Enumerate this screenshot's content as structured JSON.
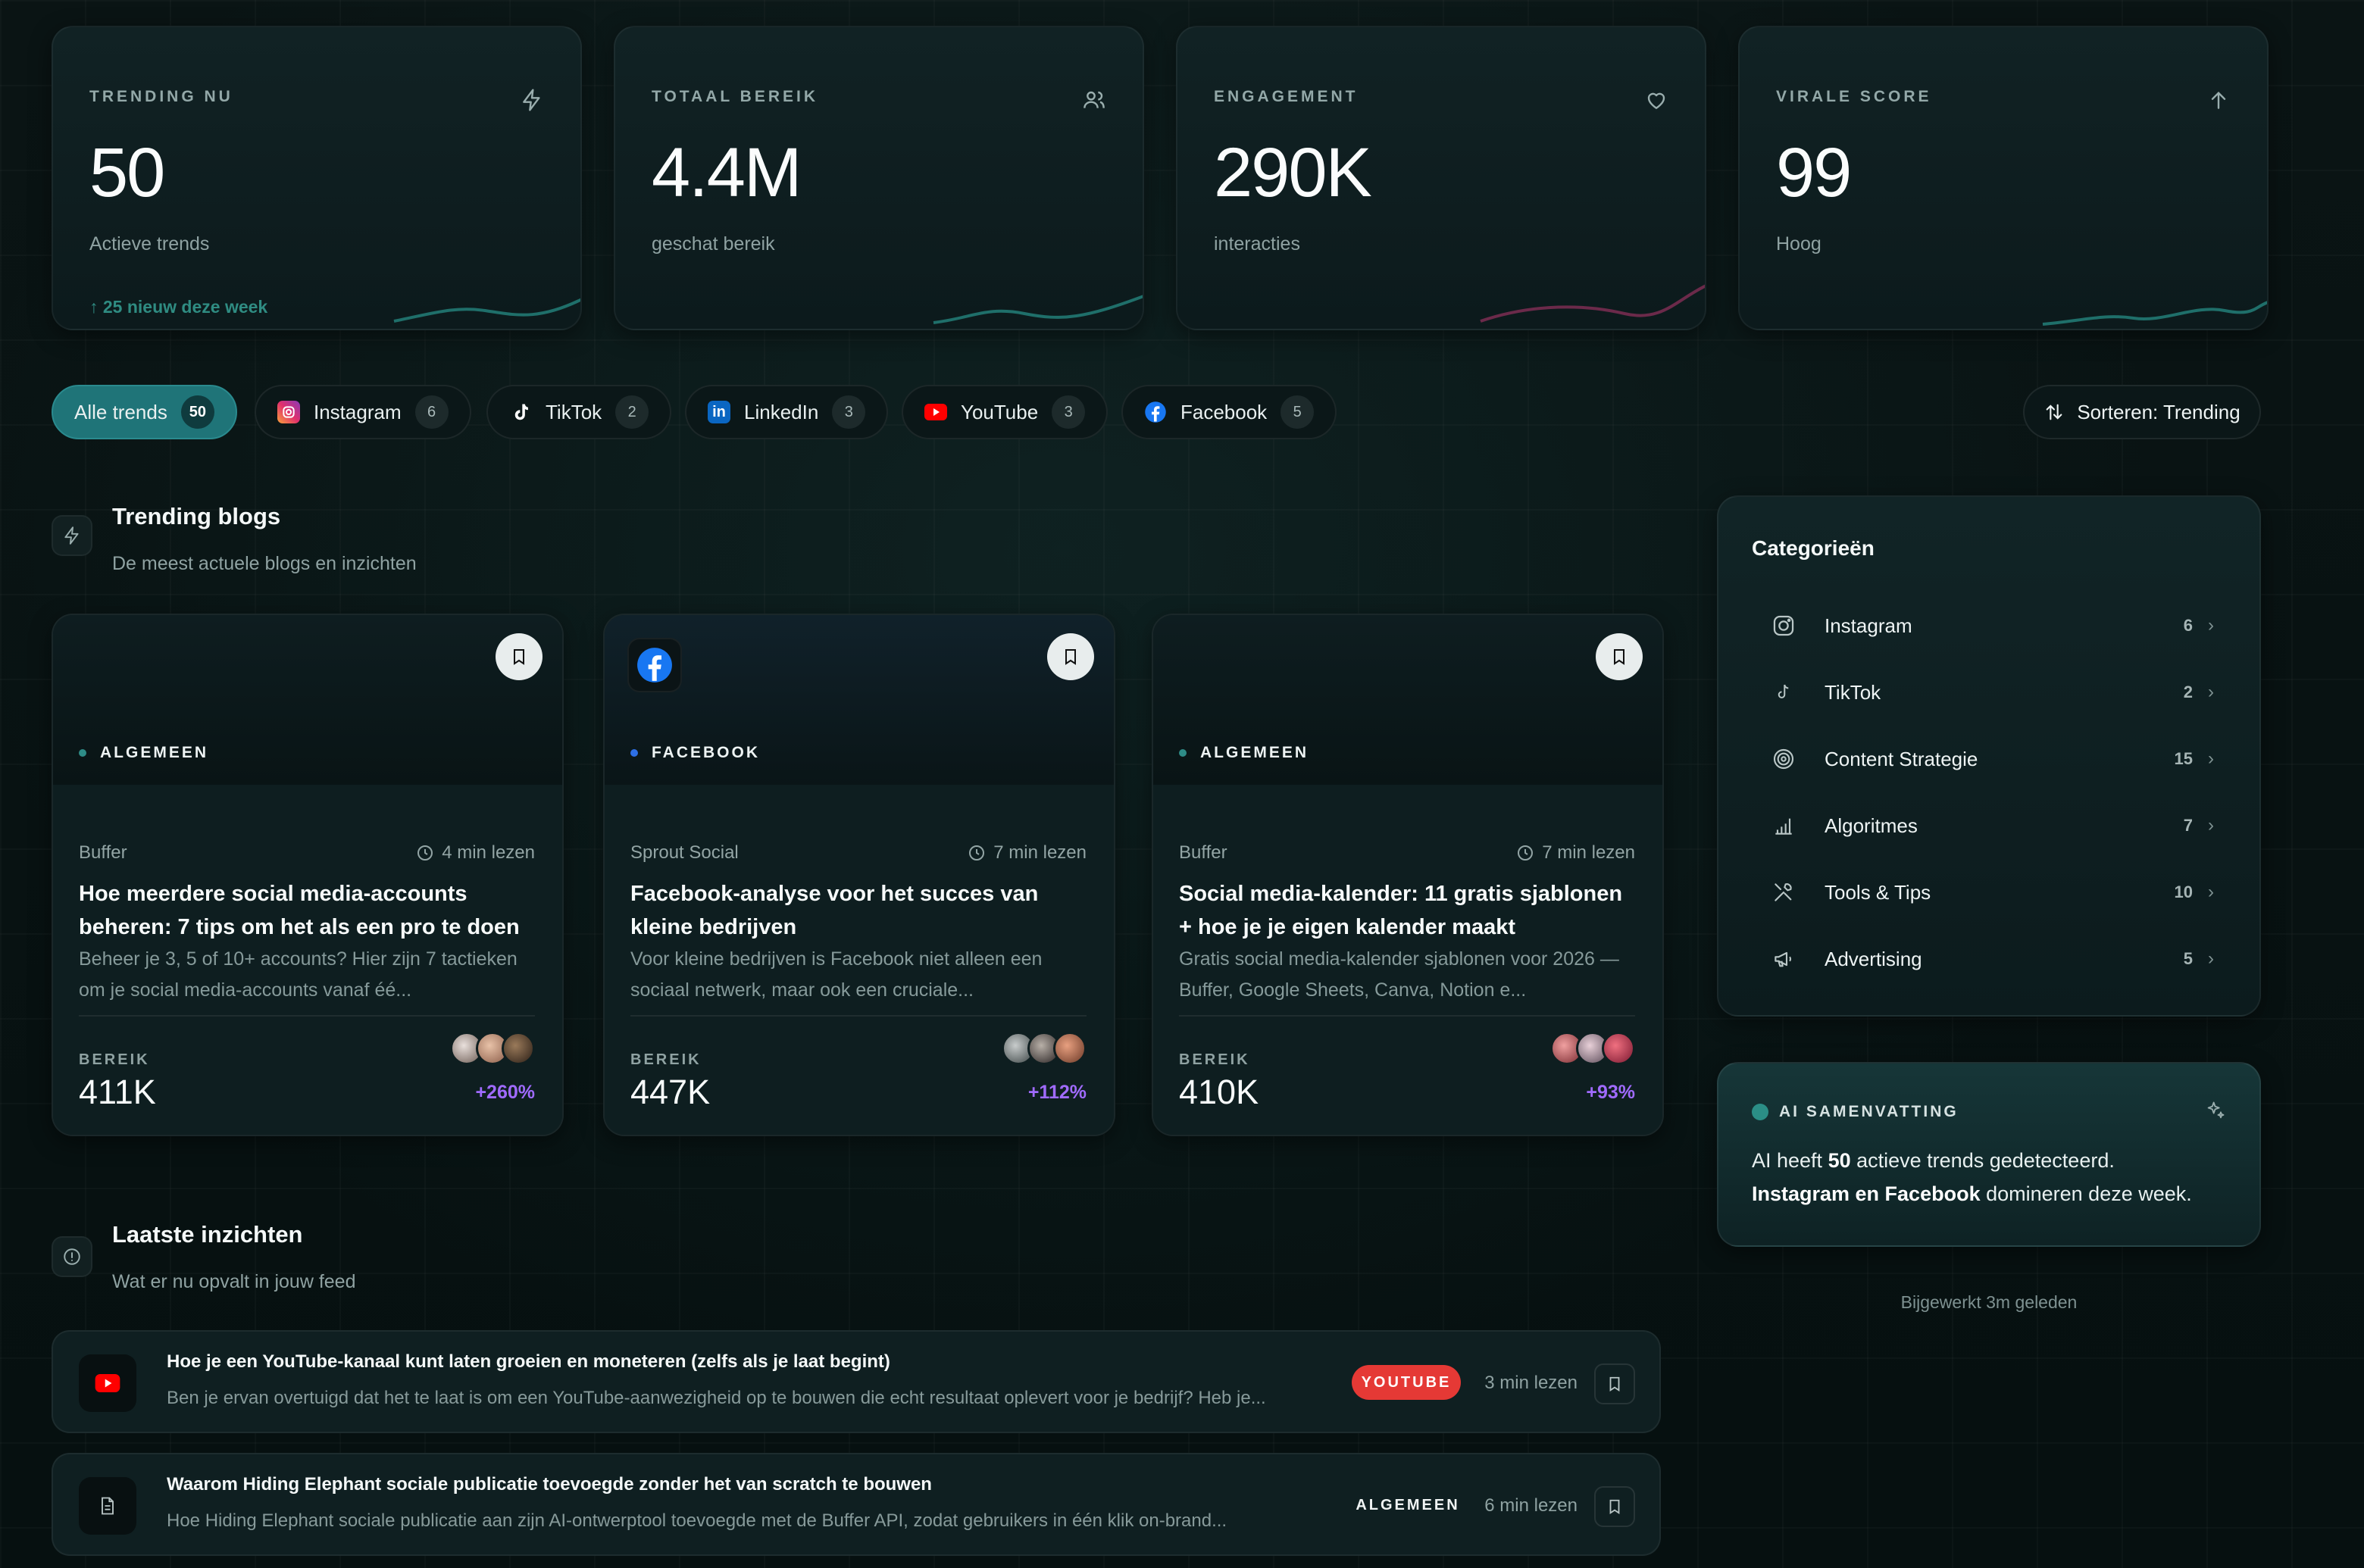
{
  "stats": [
    {
      "label": "TRENDING NU",
      "value": "50",
      "sub": "Actieve trends",
      "trend": "↑ 25 nieuw deze week",
      "icon": "lightning-icon",
      "spark_color": "#1f6f6a"
    },
    {
      "label": "TOTAAL BEREIK",
      "value": "4.4M",
      "sub": "geschat bereik",
      "trend": "",
      "icon": "users-icon",
      "spark_color": "#1f6f6a"
    },
    {
      "label": "ENGAGEMENT",
      "value": "290K",
      "sub": "interacties",
      "trend": "",
      "icon": "heart-icon",
      "spark_color": "#6b2a4a"
    },
    {
      "label": "VIRALE SCORE",
      "value": "99",
      "sub": "Hoog",
      "trend": "",
      "icon": "arrow-up-icon",
      "spark_color": "#1f6f6a"
    }
  ],
  "filters": [
    {
      "label": "Alle trends",
      "count": "50",
      "active": true
    },
    {
      "label": "Instagram",
      "count": "6",
      "icon": "instagram-icon"
    },
    {
      "label": "TikTok",
      "count": "2",
      "icon": "tiktok-icon"
    },
    {
      "label": "LinkedIn",
      "count": "3",
      "icon": "linkedin-icon"
    },
    {
      "label": "YouTube",
      "count": "3",
      "icon": "youtube-icon"
    },
    {
      "label": "Facebook",
      "count": "5",
      "icon": "facebook-icon"
    }
  ],
  "sort": {
    "label": "Sorteren: Trending"
  },
  "trending": {
    "title": "Trending blogs",
    "subtitle": "De meest actuele blogs en inzichten"
  },
  "blogs": [
    {
      "category": "ALGEMEEN",
      "source": "Buffer",
      "read": "4 min lezen",
      "title": "Hoe meerdere social media-accounts beheren: 7 tips om het als een pro te doen",
      "desc": "Beheer je 3, 5 of 10+ accounts? Hier zijn 7 tactieken om je social media-accounts vanaf éé...",
      "reach_label": "BEREIK",
      "reach": "411K",
      "growth": "+260%",
      "dot_color": "#2e8c87"
    },
    {
      "category": "FACEBOOK",
      "source": "Sprout Social",
      "read": "7 min lezen",
      "title": "Facebook-analyse voor het succes van kleine bedrijven",
      "desc": "Voor kleine bedrijven is Facebook niet alleen een sociaal netwerk, maar ook een cruciale...",
      "reach_label": "BEREIK",
      "reach": "447K",
      "growth": "+112%",
      "dot_color": "#2d6fe6"
    },
    {
      "category": "ALGEMEEN",
      "source": "Buffer",
      "read": "7 min lezen",
      "title": "Social media-kalender: 11 gratis sjablonen + hoe je je eigen kalender maakt",
      "desc": "Gratis social media-kalender sjablonen voor 2026 — Buffer, Google Sheets, Canva, Notion e...",
      "reach_label": "BEREIK",
      "reach": "410K",
      "growth": "+93%",
      "dot_color": "#2e8c87"
    }
  ],
  "sidebar": {
    "title": "Categorieën",
    "items": [
      {
        "label": "Instagram",
        "count": "6",
        "icon": "instagram-outline-icon"
      },
      {
        "label": "TikTok",
        "count": "2",
        "icon": "tiktok-outline-icon"
      },
      {
        "label": "Content Strategie",
        "count": "15",
        "icon": "target-icon"
      },
      {
        "label": "Algoritmes",
        "count": "7",
        "icon": "bar-chart-icon"
      },
      {
        "label": "Tools & Tips",
        "count": "10",
        "icon": "tools-icon"
      },
      {
        "label": "Advertising",
        "count": "5",
        "icon": "megaphone-icon"
      }
    ]
  },
  "ai": {
    "label": "AI SAMENVATTING",
    "line1_pre": "AI heeft ",
    "line1_bold": "50",
    "line1_post": " actieve trends gedetecteerd.",
    "line2_bold": "Instagram en Facebook",
    "line2_post": " domineren deze week."
  },
  "updated": "Bijgewerkt 3m geleden",
  "insights": {
    "title": "Laatste inzichten",
    "subtitle": "Wat er nu opvalt in jouw feed"
  },
  "insight_items": [
    {
      "title": "Hoe je een YouTube-kanaal kunt laten groeien en moneteren (zelfs als je laat begint)",
      "desc": "Ben je ervan overtuigd dat het te laat is om een YouTube-aanwezigheid op te bouwen die echt resultaat oplevert voor je bedrijf? Heb je...",
      "tag": "YOUTUBE",
      "read": "3 min lezen",
      "icon": "youtube-icon"
    },
    {
      "title": "Waarom Hiding Elephant sociale publicatie toevoegde zonder het van scratch te bouwen",
      "desc": "Hoe Hiding Elephant sociale publicatie aan zijn AI-ontwerptool toevoegde met de Buffer API, zodat gebruikers in één klik on-brand...",
      "tag": "ALGEMEEN",
      "read": "6 min lezen",
      "icon": "document-icon"
    }
  ]
}
